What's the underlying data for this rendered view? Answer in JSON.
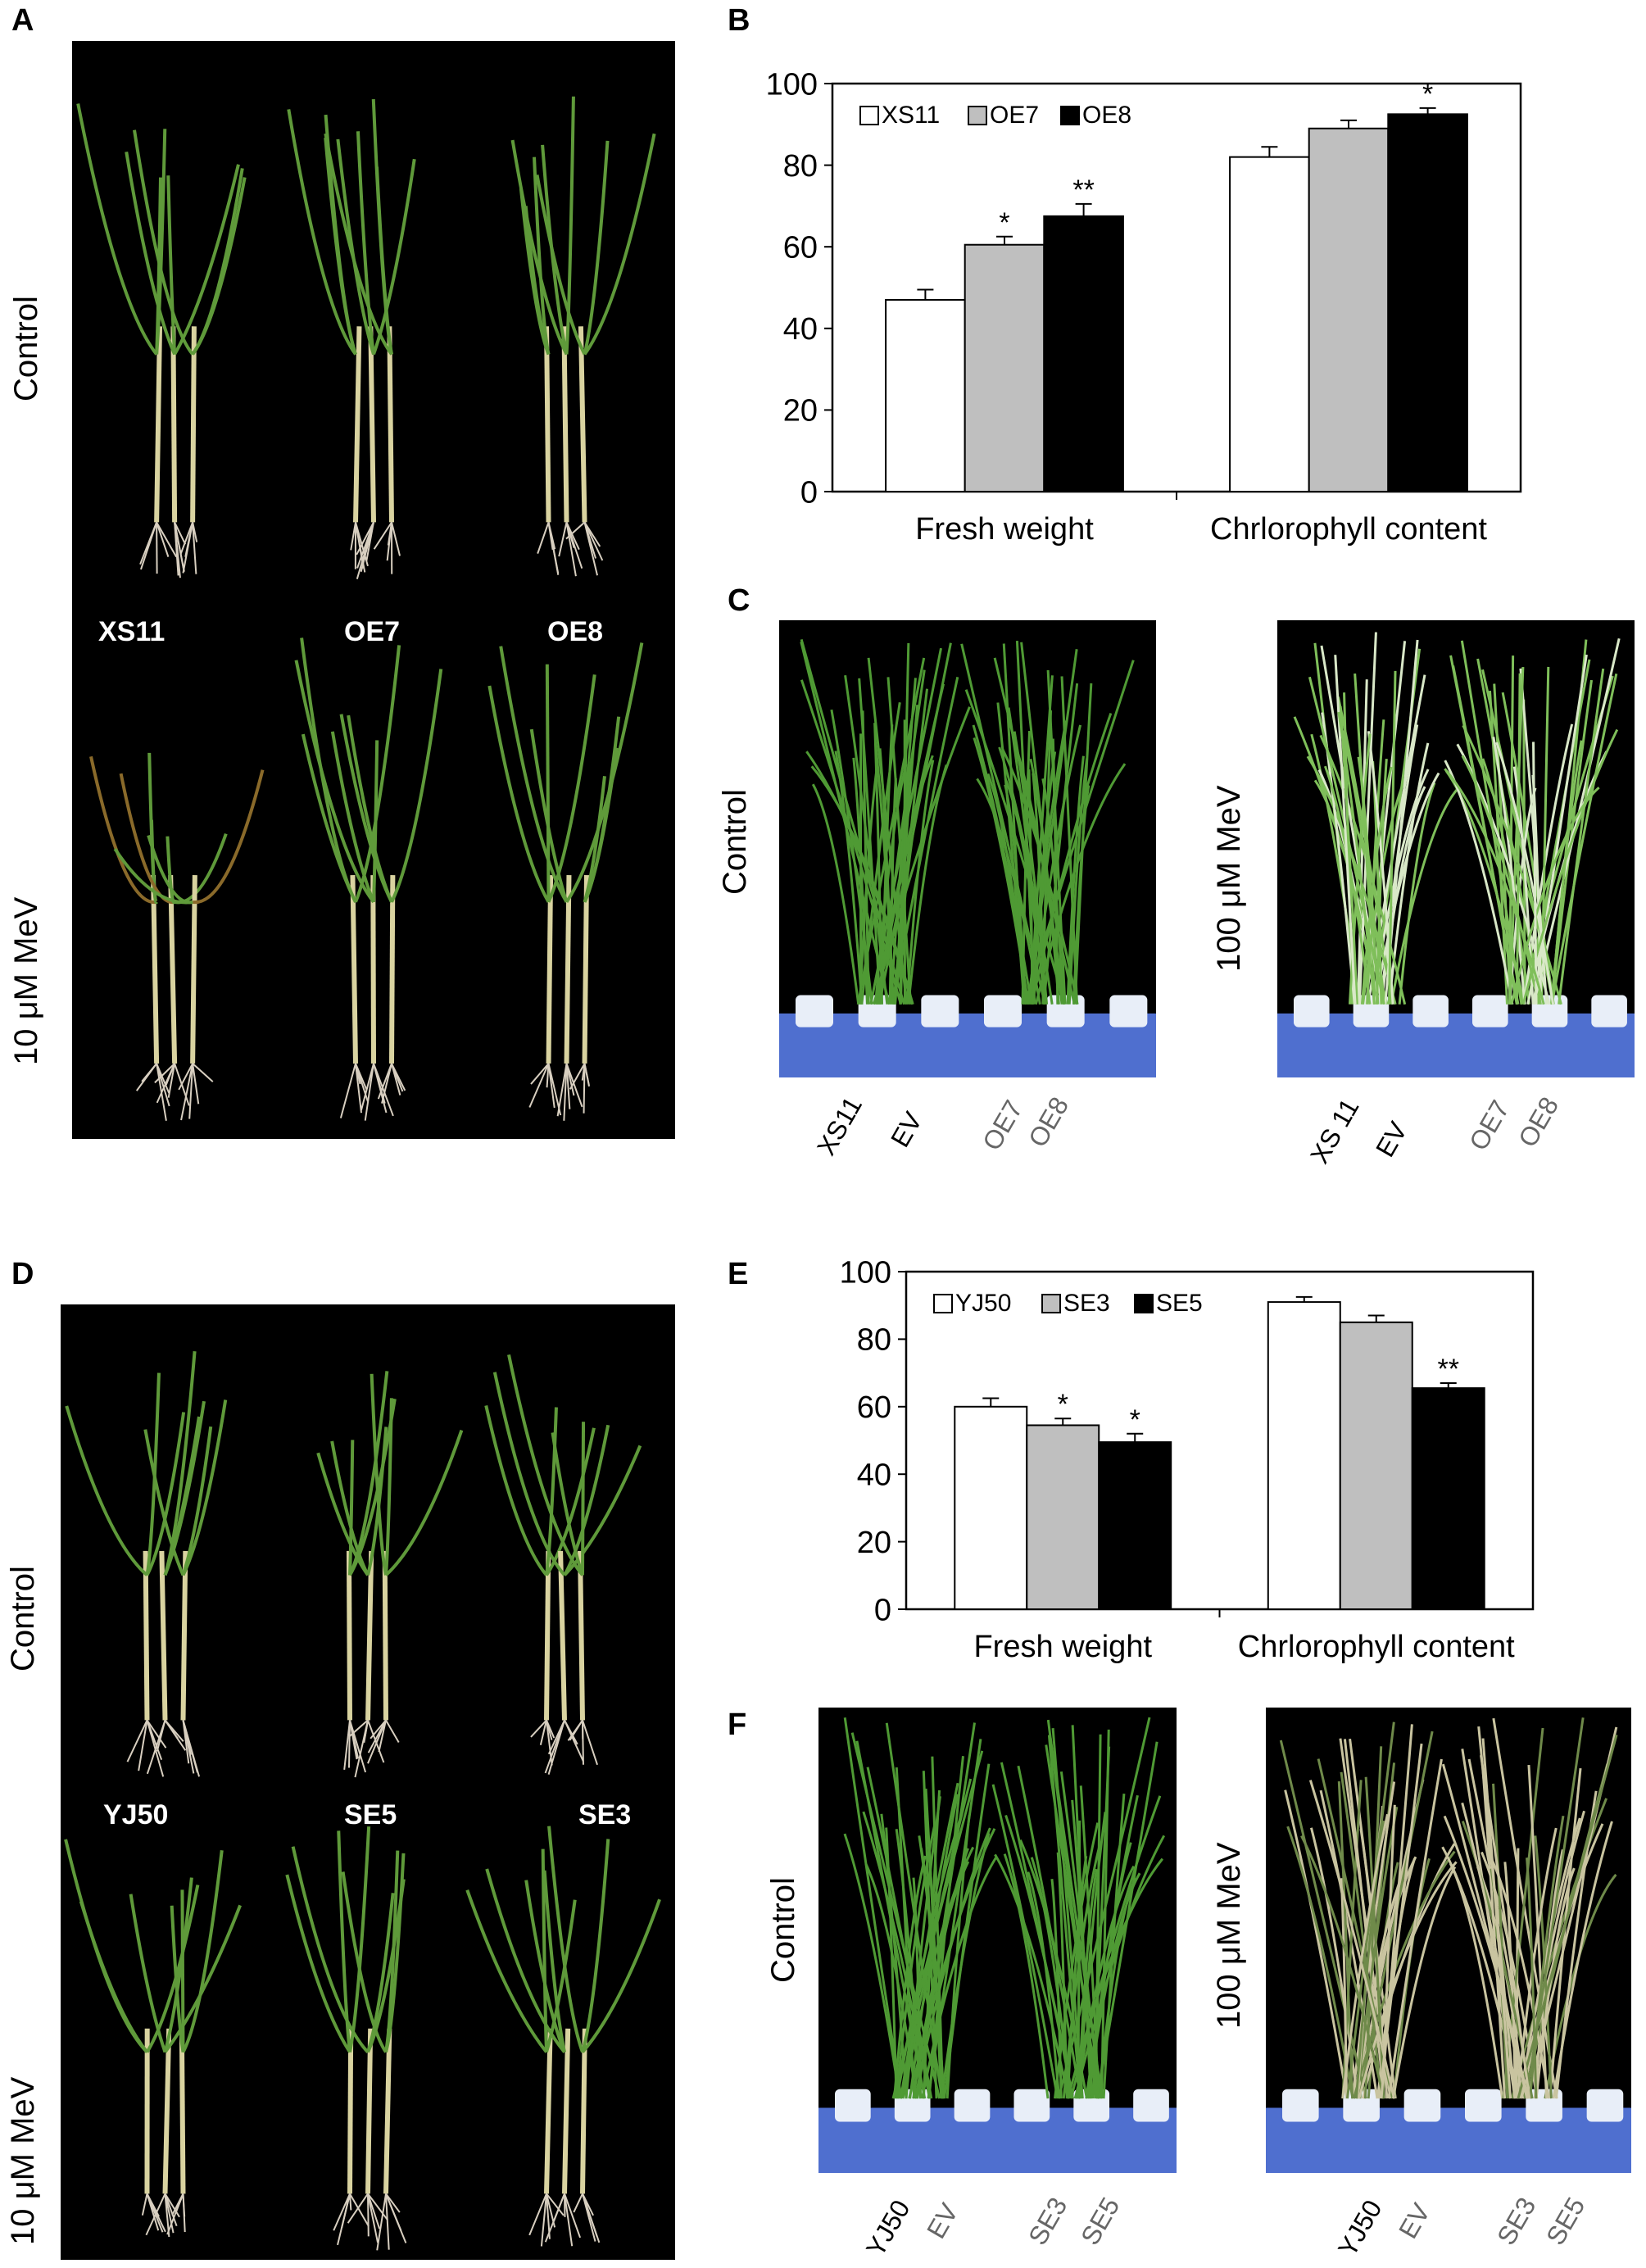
{
  "panels": {
    "A": {
      "letter": "A",
      "row_labels": [
        "Control",
        "10 μM MeV"
      ],
      "plant_labels": [
        "XS11",
        "OE7",
        "OE8"
      ],
      "colors": {
        "background": "#000000",
        "leaf": "#5f9a3a",
        "stem": "#d9d3a0",
        "root": "#d8cfc0",
        "wilt": "#8a6a2a"
      }
    },
    "B": {
      "letter": "B"
    },
    "C": {
      "letter": "C",
      "treatments": [
        "Control",
        "100 μM MeV"
      ],
      "left_labels": [
        "XS11",
        "EV",
        "OE7",
        "OE8"
      ],
      "right_labels": [
        "XS 11",
        "EV",
        "OE7",
        "OE8"
      ]
    },
    "D": {
      "letter": "D",
      "row_labels": [
        "Control",
        "10 μM MeV"
      ],
      "plant_labels": [
        "YJ50",
        "SE5",
        "SE3"
      ]
    },
    "E": {
      "letter": "E"
    },
    "F": {
      "letter": "F",
      "treatments": [
        "Control",
        "100 μM MeV"
      ],
      "left_labels": [
        "YJ50",
        "EV",
        "SE3",
        "SE5"
      ],
      "right_labels": [
        "YJ50",
        "EV",
        "SE3",
        "SE5"
      ]
    }
  },
  "chart_data": [
    {
      "panel": "B",
      "type": "bar",
      "categories": [
        "Fresh weight",
        "Chrlorophyll content"
      ],
      "ylim": [
        0,
        100
      ],
      "yticks": [
        0,
        20,
        40,
        60,
        80,
        100
      ],
      "legend_position": "top-left",
      "series": [
        {
          "name": "XS11",
          "color": "#ffffff",
          "values": [
            47,
            82
          ],
          "errors": [
            2.5,
            2.5
          ],
          "sig": [
            "",
            ""
          ]
        },
        {
          "name": "OE7",
          "color": "#bfbfbf",
          "values": [
            60.5,
            89
          ],
          "errors": [
            2,
            2
          ],
          "sig": [
            "*",
            ""
          ]
        },
        {
          "name": "OE8",
          "color": "#000000",
          "values": [
            67.5,
            92.5
          ],
          "errors": [
            3,
            1.5
          ],
          "sig": [
            "**",
            "*"
          ]
        }
      ]
    },
    {
      "panel": "E",
      "type": "bar",
      "categories": [
        "Fresh weight",
        "Chrlorophyll content"
      ],
      "ylim": [
        0,
        100
      ],
      "yticks": [
        0,
        20,
        40,
        60,
        80,
        100
      ],
      "legend_position": "top-left",
      "series": [
        {
          "name": "YJ50",
          "color": "#ffffff",
          "values": [
            60,
            91
          ],
          "errors": [
            2.5,
            1.5
          ],
          "sig": [
            "",
            ""
          ]
        },
        {
          "name": "SE3",
          "color": "#bfbfbf",
          "values": [
            54.5,
            85
          ],
          "errors": [
            2,
            2
          ],
          "sig": [
            "*",
            ""
          ]
        },
        {
          "name": "SE5",
          "color": "#000000",
          "values": [
            49.5,
            65.5
          ],
          "errors": [
            2.5,
            1.5
          ],
          "sig": [
            "*",
            "**"
          ]
        }
      ]
    }
  ]
}
